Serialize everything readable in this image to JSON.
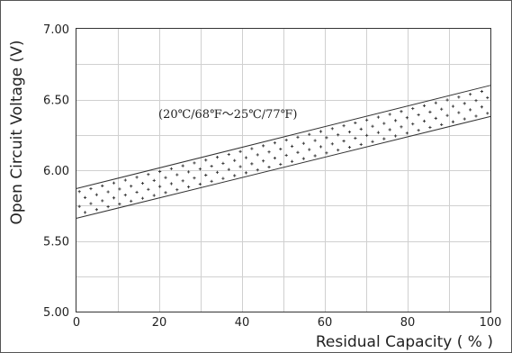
{
  "chart_data": {
    "type": "area",
    "title": "",
    "xlabel": "Residual Capacity ( % )",
    "ylabel": "Open Circuit Voltage (V)",
    "xlim": [
      0,
      100
    ],
    "ylim": [
      5.0,
      7.0
    ],
    "x_ticks": [
      "0",
      "20",
      "40",
      "60",
      "80",
      "100"
    ],
    "y_ticks": [
      "5.00",
      "5.50",
      "6.00",
      "6.50",
      "7.00"
    ],
    "grid": true,
    "annotation": "(20℃/68℉～25℃/77℉)",
    "band": {
      "x": [
        0,
        100
      ],
      "upper": [
        5.87,
        6.6
      ],
      "lower": [
        5.66,
        6.38
      ]
    }
  }
}
